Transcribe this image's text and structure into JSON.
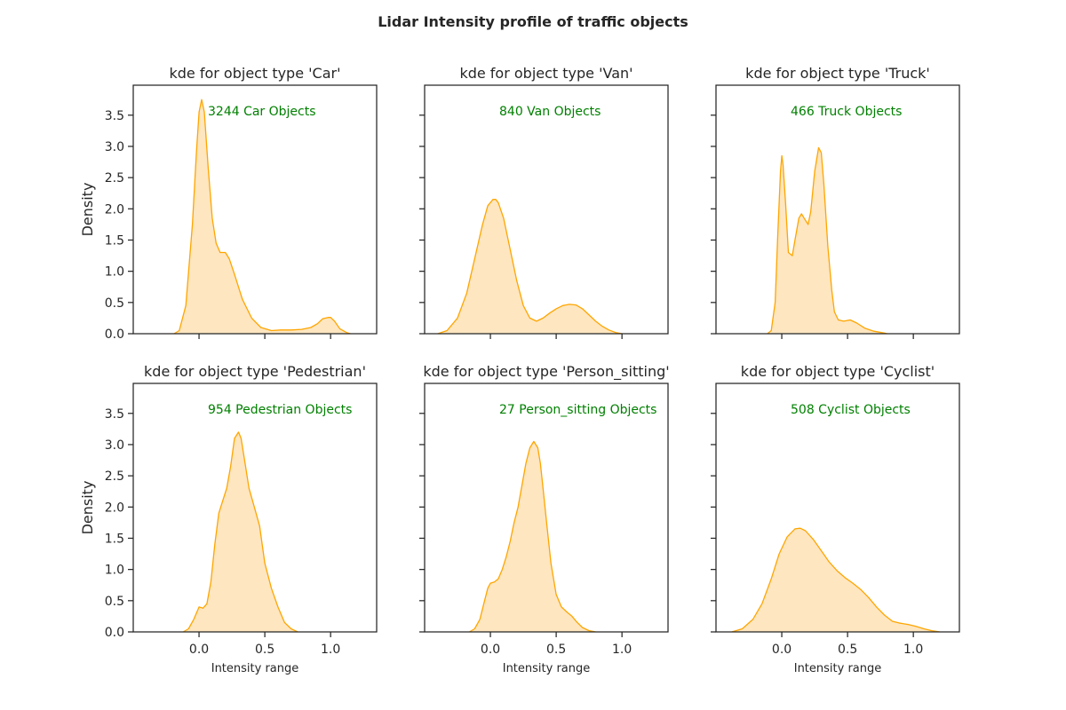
{
  "figure": {
    "title": "Lidar Intensity profile of traffic objects"
  },
  "colors": {
    "line": "#FFA500",
    "fill": "#FDE6C0",
    "annotation": "#008000",
    "axes": "#262626"
  },
  "chart_data": [
    {
      "type": "area",
      "title": "kde for object type 'Car'",
      "annotation": "3244 Car Objects",
      "xlabel": "",
      "ylabel": "Density",
      "xlim": [
        -0.5,
        1.35
      ],
      "ylim": [
        0,
        3.98
      ],
      "xticks": [
        0.0,
        0.5,
        1.0
      ],
      "xtick_labels": [
        "",
        "",
        ""
      ],
      "yticks": [
        0.0,
        0.5,
        1.0,
        1.5,
        2.0,
        2.5,
        3.0,
        3.5
      ],
      "ytick_labels": [
        "0.0",
        "0.5",
        "1.0",
        "1.5",
        "2.0",
        "2.5",
        "3.0",
        "3.5"
      ],
      "x": [
        -0.19,
        -0.15,
        -0.1,
        -0.05,
        -0.02,
        0.0,
        0.02,
        0.04,
        0.07,
        0.1,
        0.13,
        0.16,
        0.2,
        0.23,
        0.27,
        0.33,
        0.4,
        0.47,
        0.55,
        0.62,
        0.7,
        0.78,
        0.85,
        0.9,
        0.94,
        0.98,
        1.0,
        1.03,
        1.07,
        1.12,
        1.15
      ],
      "y": [
        0.0,
        0.05,
        0.45,
        1.75,
        2.9,
        3.55,
        3.75,
        3.55,
        2.65,
        1.85,
        1.45,
        1.3,
        1.3,
        1.2,
        0.95,
        0.55,
        0.25,
        0.1,
        0.05,
        0.06,
        0.06,
        0.07,
        0.1,
        0.16,
        0.24,
        0.26,
        0.26,
        0.2,
        0.08,
        0.02,
        0.0
      ]
    },
    {
      "type": "area",
      "title": "kde for object type 'Van'",
      "annotation": "840 Van Objects",
      "xlabel": "",
      "ylabel": "",
      "xlim": [
        -0.5,
        1.35
      ],
      "ylim": [
        0,
        3.98
      ],
      "xticks": [
        0.0,
        0.5,
        1.0
      ],
      "xtick_labels": [
        "",
        "",
        ""
      ],
      "yticks": [
        0.0,
        0.5,
        1.0,
        1.5,
        2.0,
        2.5,
        3.0,
        3.5
      ],
      "ytick_labels": [
        "",
        "",
        "",
        "",
        "",
        "",
        "",
        ""
      ],
      "x": [
        -0.4,
        -0.33,
        -0.25,
        -0.18,
        -0.12,
        -0.06,
        -0.02,
        0.02,
        0.04,
        0.06,
        0.1,
        0.15,
        0.2,
        0.25,
        0.3,
        0.35,
        0.4,
        0.45,
        0.5,
        0.55,
        0.6,
        0.65,
        0.7,
        0.75,
        0.8,
        0.85,
        0.9,
        0.95,
        1.0
      ],
      "y": [
        0.0,
        0.05,
        0.25,
        0.65,
        1.2,
        1.75,
        2.05,
        2.15,
        2.15,
        2.1,
        1.85,
        1.35,
        0.85,
        0.45,
        0.25,
        0.2,
        0.25,
        0.33,
        0.4,
        0.45,
        0.47,
        0.46,
        0.4,
        0.3,
        0.2,
        0.12,
        0.06,
        0.02,
        0.0
      ]
    },
    {
      "type": "area",
      "title": "kde for object type 'Truck'",
      "annotation": "466 Truck Objects",
      "xlabel": "",
      "ylabel": "",
      "xlim": [
        -0.5,
        1.35
      ],
      "ylim": [
        0,
        3.98
      ],
      "xticks": [
        0.0,
        0.5,
        1.0
      ],
      "xtick_labels": [
        "",
        "",
        ""
      ],
      "yticks": [
        0.0,
        0.5,
        1.0,
        1.5,
        2.0,
        2.5,
        3.0,
        3.5
      ],
      "ytick_labels": [
        "",
        "",
        "",
        "",
        "",
        "",
        "",
        ""
      ],
      "x": [
        -0.11,
        -0.08,
        -0.05,
        -0.03,
        -0.01,
        0.0,
        0.01,
        0.03,
        0.05,
        0.08,
        0.1,
        0.13,
        0.15,
        0.17,
        0.2,
        0.22,
        0.25,
        0.28,
        0.3,
        0.32,
        0.35,
        0.38,
        0.4,
        0.43,
        0.47,
        0.52,
        0.57,
        0.63,
        0.7,
        0.78,
        0.8
      ],
      "y": [
        0.0,
        0.05,
        0.5,
        1.6,
        2.6,
        2.85,
        2.7,
        2.05,
        1.3,
        1.25,
        1.5,
        1.85,
        1.92,
        1.85,
        1.75,
        1.95,
        2.6,
        2.98,
        2.9,
        2.4,
        1.4,
        0.7,
        0.35,
        0.22,
        0.2,
        0.22,
        0.17,
        0.09,
        0.04,
        0.01,
        0.0
      ]
    },
    {
      "type": "area",
      "title": "kde for object type 'Pedestrian'",
      "annotation": "954 Pedestrian Objects",
      "xlabel": "Intensity range",
      "ylabel": "Density",
      "xlim": [
        -0.5,
        1.35
      ],
      "ylim": [
        0,
        3.98
      ],
      "xticks": [
        0.0,
        0.5,
        1.0
      ],
      "xtick_labels": [
        "0.0",
        "0.5",
        "1.0"
      ],
      "yticks": [
        0.0,
        0.5,
        1.0,
        1.5,
        2.0,
        2.5,
        3.0,
        3.5
      ],
      "ytick_labels": [
        "0.0",
        "0.5",
        "1.0",
        "1.5",
        "2.0",
        "2.5",
        "3.0",
        "3.5"
      ],
      "x": [
        -0.12,
        -0.08,
        -0.04,
        0.0,
        0.03,
        0.06,
        0.09,
        0.12,
        0.15,
        0.18,
        0.21,
        0.24,
        0.27,
        0.3,
        0.32,
        0.35,
        0.38,
        0.42,
        0.46,
        0.5,
        0.55,
        0.6,
        0.65,
        0.7,
        0.75
      ],
      "y": [
        0.0,
        0.05,
        0.2,
        0.4,
        0.38,
        0.45,
        0.8,
        1.4,
        1.9,
        2.1,
        2.3,
        2.65,
        3.1,
        3.2,
        3.1,
        2.7,
        2.3,
        2.0,
        1.7,
        1.1,
        0.7,
        0.4,
        0.15,
        0.05,
        0.0
      ]
    },
    {
      "type": "area",
      "title": "kde for object type 'Person_sitting'",
      "annotation": "27 Person_sitting Objects",
      "xlabel": "Intensity range",
      "ylabel": "",
      "xlim": [
        -0.5,
        1.35
      ],
      "ylim": [
        0,
        3.98
      ],
      "xticks": [
        0.0,
        0.5,
        1.0
      ],
      "xtick_labels": [
        "0.0",
        "0.5",
        "1.0"
      ],
      "yticks": [
        0.0,
        0.5,
        1.0,
        1.5,
        2.0,
        2.5,
        3.0,
        3.5
      ],
      "ytick_labels": [
        "",
        "",
        "",
        "",
        "",
        "",
        "",
        ""
      ],
      "x": [
        -0.16,
        -0.12,
        -0.08,
        -0.05,
        -0.02,
        0.0,
        0.03,
        0.06,
        0.09,
        0.12,
        0.15,
        0.18,
        0.21,
        0.24,
        0.27,
        0.3,
        0.33,
        0.36,
        0.38,
        0.4,
        0.43,
        0.46,
        0.5,
        0.54,
        0.58,
        0.62,
        0.66,
        0.7,
        0.75,
        0.8
      ],
      "y": [
        0.0,
        0.05,
        0.2,
        0.45,
        0.7,
        0.78,
        0.8,
        0.85,
        1.0,
        1.2,
        1.45,
        1.75,
        2.0,
        2.35,
        2.7,
        2.95,
        3.05,
        2.95,
        2.7,
        2.3,
        1.7,
        1.1,
        0.6,
        0.4,
        0.32,
        0.25,
        0.15,
        0.07,
        0.02,
        0.0
      ]
    },
    {
      "type": "area",
      "title": "kde for object type 'Cyclist'",
      "annotation": "508 Cyclist Objects",
      "xlabel": "Intensity range",
      "ylabel": "",
      "xlim": [
        -0.5,
        1.35
      ],
      "ylim": [
        0,
        3.98
      ],
      "xticks": [
        0.0,
        0.5,
        1.0
      ],
      "xtick_labels": [
        "0.0",
        "0.5",
        "1.0"
      ],
      "yticks": [
        0.0,
        0.5,
        1.0,
        1.5,
        2.0,
        2.5,
        3.0,
        3.5
      ],
      "ytick_labels": [
        "",
        "",
        "",
        "",
        "",
        "",
        "",
        ""
      ],
      "x": [
        -0.38,
        -0.3,
        -0.22,
        -0.15,
        -0.08,
        -0.02,
        0.04,
        0.1,
        0.14,
        0.18,
        0.24,
        0.3,
        0.36,
        0.42,
        0.48,
        0.54,
        0.6,
        0.66,
        0.72,
        0.78,
        0.84,
        0.9,
        0.96,
        1.02,
        1.08,
        1.14,
        1.2
      ],
      "y": [
        0.0,
        0.05,
        0.2,
        0.45,
        0.85,
        1.25,
        1.52,
        1.65,
        1.66,
        1.62,
        1.48,
        1.3,
        1.12,
        0.98,
        0.87,
        0.78,
        0.68,
        0.55,
        0.4,
        0.27,
        0.17,
        0.14,
        0.12,
        0.09,
        0.05,
        0.02,
        0.0
      ]
    }
  ]
}
